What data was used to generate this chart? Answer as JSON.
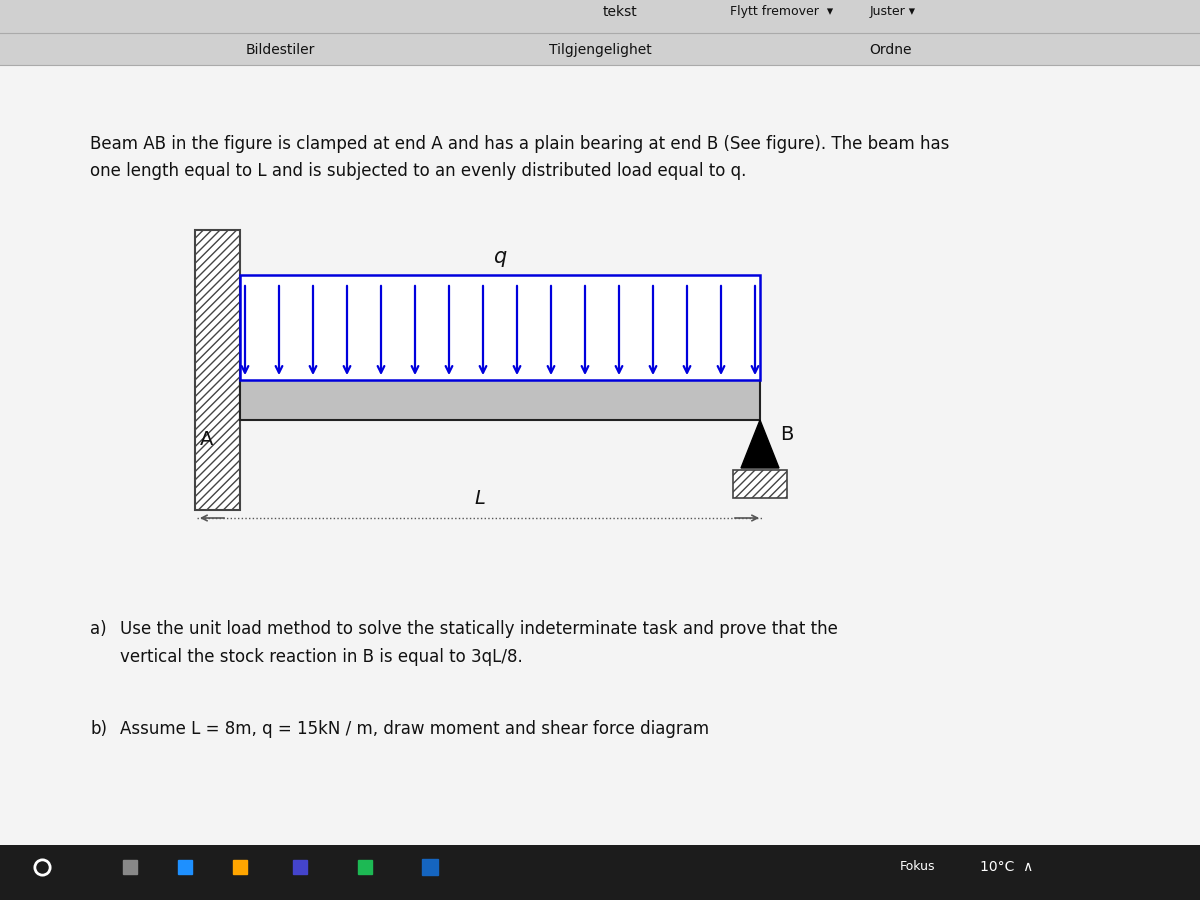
{
  "bg_color": "#e8e8e8",
  "content_bg": "#f0f0f0",
  "toolbar_bg": "#d4d4d4",
  "taskbar_bg": "#1c1c1c",
  "title_text": "Beam AB in the figure is clamped at end A and has a plain bearing at end B (See figure). The beam has",
  "title_text2": "one length equal to L and is subjected to an evenly distributed load equal to q.",
  "part_a_label": "a)",
  "part_a1": "Use the unit load method to solve the statically indeterminate task and prove that the",
  "part_a2": "vertical the stock reaction in B is equal to 3qL/8.",
  "part_b_label": "b)",
  "part_b1": "Assume L = 8m, q = 15kN / m, draw moment and shear force diagram",
  "beam_color": "#c0c0c0",
  "beam_outline": "#222222",
  "load_color": "#0000dd",
  "hatch_color": "#444444",
  "label_q": "q",
  "label_A": "A",
  "label_B": "B",
  "label_L": "L",
  "num_load_arrows": 16,
  "toolbar_texts": [
    "tekst",
    "Flytt fremover ▾",
    "Juster ▾",
    "Bildestiler",
    "Tilgjengelighet",
    "Ordne"
  ],
  "taskbar_right": "10°C  ∧",
  "fokus_text": "Fokus"
}
